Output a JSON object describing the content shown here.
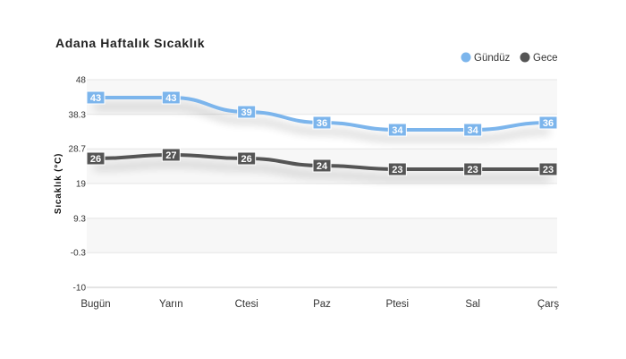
{
  "chart_data": {
    "type": "line",
    "title": "Adana Haftalık Sıcaklık",
    "xlabel": "",
    "ylabel": "Sıcaklık (°C)",
    "categories": [
      "Bugün",
      "Yarın",
      "Ctesi",
      "Paz",
      "Ptesi",
      "Sal",
      "Çarş"
    ],
    "yticks": [
      "48",
      "38.3",
      "28.7",
      "19",
      "9.3",
      "-0.3",
      "-10"
    ],
    "ylim": [
      -10,
      48
    ],
    "grid": true,
    "legend_position": "top-right",
    "series": [
      {
        "name": "Gündüz",
        "color": "#7cb5ec",
        "values": [
          43,
          43,
          39,
          36,
          34,
          34,
          36
        ]
      },
      {
        "name": "Gece",
        "color": "#555555",
        "values": [
          26,
          27,
          26,
          24,
          23,
          23,
          23
        ]
      }
    ]
  }
}
